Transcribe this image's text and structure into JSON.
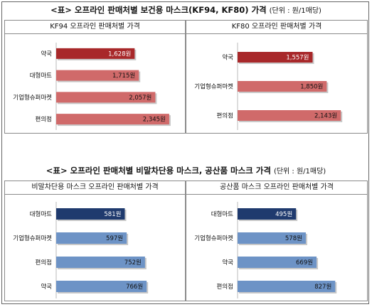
{
  "colors": {
    "red": "#d06a6a",
    "red_dark": "#a8282a",
    "blue": "#6d93c6",
    "blue_dark": "#1f3a6e"
  },
  "section1": {
    "title": "<표> 오프라인 판매처별 보건용 마스크(KF94, KF80) 가격",
    "unit": "(단위 : 원/1매당)"
  },
  "section2": {
    "title": "<표> 오프라인 판매처별 비말차단용 마스크, 공산품 마스크 가격",
    "unit": "(단위 : 원/1매당)"
  },
  "chart_data": [
    {
      "type": "bar",
      "orientation": "horizontal",
      "title": "KF94 오프라인 판매처별 가격",
      "categories": [
        "약국",
        "대형마트",
        "기업형슈퍼마켓",
        "편의점"
      ],
      "values": [
        1628,
        1715,
        2057,
        2345
      ],
      "labels": [
        "1,628원",
        "1,715원",
        "2,057원",
        "2,345원"
      ],
      "highlight_index": 0,
      "color": "red",
      "xlim": [
        0,
        2450
      ]
    },
    {
      "type": "bar",
      "orientation": "horizontal",
      "title": "KF80 오프라인 판매처별 가격",
      "categories": [
        "약국",
        "기업형슈퍼마켓",
        "편의점"
      ],
      "values": [
        1557,
        1850,
        2143
      ],
      "labels": [
        "1,557원",
        "1,850원",
        "2,143원"
      ],
      "highlight_index": 0,
      "color": "red",
      "xlim": [
        0,
        2450
      ]
    },
    {
      "type": "bar",
      "orientation": "horizontal",
      "title": "비말차단용 마스크 오프라인 판매처별 가격",
      "categories": [
        "대형마트",
        "기업형슈퍼마켓",
        "편의점",
        "약국"
      ],
      "values": [
        581,
        597,
        752,
        766
      ],
      "labels": [
        "581원",
        "597원",
        "752원",
        "766원"
      ],
      "highlight_index": 0,
      "color": "blue",
      "xlim": [
        0,
        1000
      ]
    },
    {
      "type": "bar",
      "orientation": "horizontal",
      "title": "공산품 마스크 오프라인 판매처별 가격",
      "categories": [
        "대형마트",
        "기업형슈퍼마켓",
        "약국",
        "편의점"
      ],
      "values": [
        495,
        578,
        669,
        827
      ],
      "labels": [
        "495원",
        "578원",
        "669원",
        "827원"
      ],
      "highlight_index": 0,
      "color": "blue",
      "xlim": [
        0,
        1000
      ]
    }
  ]
}
